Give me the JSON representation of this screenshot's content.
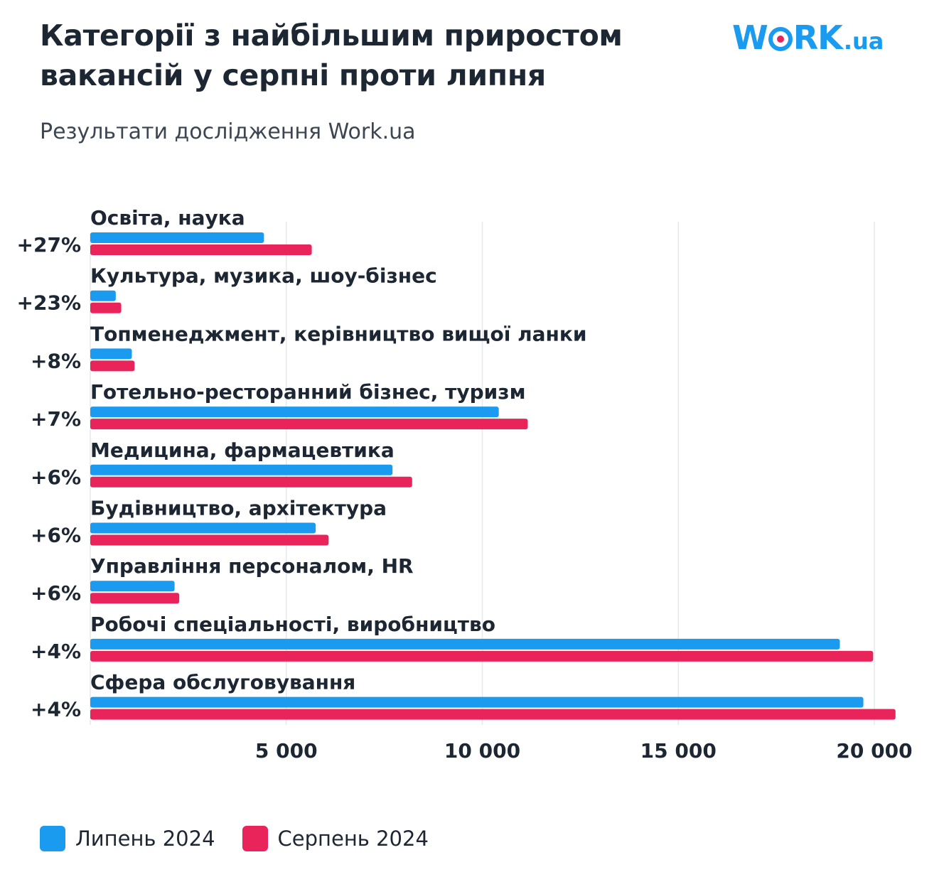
{
  "header": {
    "title_line1": "Категорії з найбільшим приростом",
    "title_line2": "вакансій у серпні проти липня",
    "subtitle": "Результати дослідження Work.ua"
  },
  "logo": {
    "part1": "W",
    "part2": "RK",
    "part3": ".ua"
  },
  "colors": {
    "july": "#1a9bf0",
    "august": "#e8245b",
    "grid": "#e6e8eb",
    "text": "#1d2733"
  },
  "legend": {
    "july_label": "Липень 2024",
    "august_label": "Серпень 2024"
  },
  "chart_data": {
    "type": "bar",
    "orientation": "horizontal",
    "title": "Категорії з найбільшим приростом вакансій у серпні проти липня",
    "subtitle": "Результати дослідження Work.ua",
    "categories": [
      "Освіта, наука",
      "Культура, музика, шоу-бізнес",
      "Топменеджмент, керівництво вищої ланки",
      "Готельно-ресторанний бізнес, туризм",
      "Медицина, фармацевтика",
      "Будівництво, архітектура",
      "Управління персоналом, HR",
      "Робочі спеціальності, виробництво",
      "Сфера обслуговування"
    ],
    "growth_labels": [
      "+27%",
      "+23%",
      "+8%",
      "+7%",
      "+6%",
      "+6%",
      "+6%",
      "+4%",
      "+4%"
    ],
    "series": [
      {
        "name": "Липень 2024",
        "values": [
          4430,
          650,
          1060,
          10420,
          7710,
          5750,
          2150,
          19120,
          19720
        ]
      },
      {
        "name": "Серпень 2024",
        "values": [
          5650,
          790,
          1130,
          11160,
          8210,
          6080,
          2270,
          19970,
          20540
        ]
      }
    ],
    "xlim": [
      0,
      20540
    ],
    "x_ticks": [
      5000,
      10000,
      15000,
      20000
    ],
    "x_tick_labels": [
      "5 000",
      "10 000",
      "15 000",
      "20 000"
    ],
    "grid": true,
    "legend_position": "bottom-left"
  }
}
